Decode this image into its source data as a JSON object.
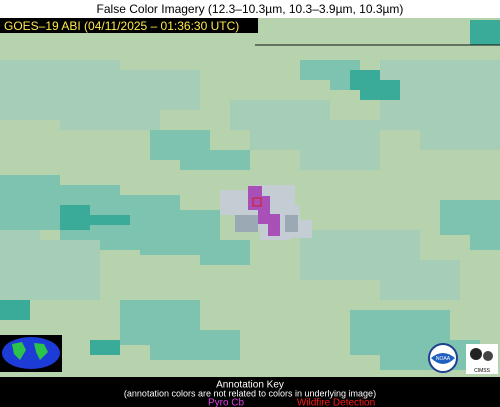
{
  "header": {
    "title": "False Color Imagery (12.3–10.3µm, 10.3–3.9µm, 10.3µm)"
  },
  "timestamp": "GOES–19 ABI (04/11/2025 – 01:36:30 UTC)",
  "annotation_key": {
    "title": "Annotation Key",
    "note": "(annotation colors are not related to colors in underlying image)",
    "items": [
      {
        "label": "Pyro Cb"
      },
      {
        "label": "Wildfire Detection"
      }
    ]
  },
  "logos": {
    "noaa": "NOAA",
    "cimss": "CIMSS"
  }
}
